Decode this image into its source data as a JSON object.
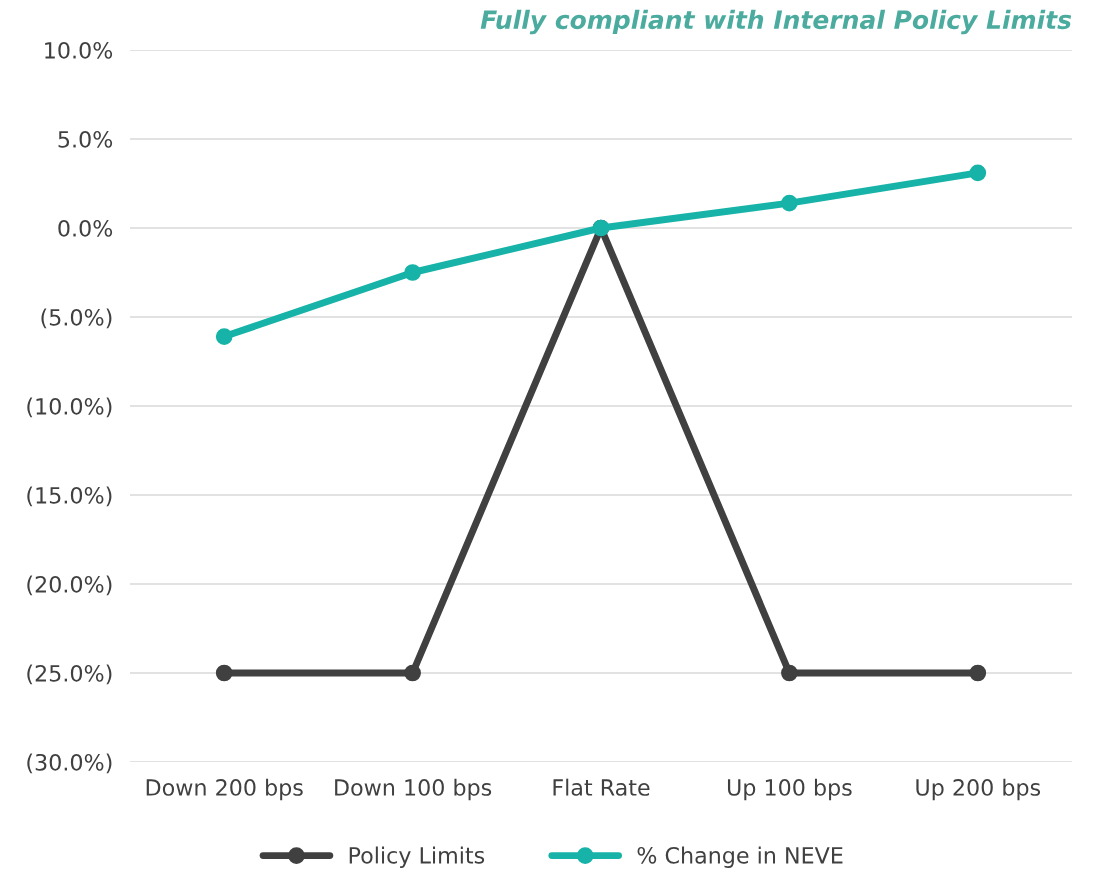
{
  "chart_data": {
    "type": "line",
    "title": "Fully compliant with Internal Policy Limits",
    "categories": [
      "Down 200 bps",
      "Down 100 bps",
      "Flat Rate",
      "Up 100 bps",
      "Up 200 bps"
    ],
    "series": [
      {
        "name": "Policy Limits",
        "color": "#404040",
        "values": [
          -25,
          -25,
          0,
          -25,
          -25
        ]
      },
      {
        "name": "% Change in NEVE",
        "color": "#17b3a8",
        "values": [
          -6.1,
          -2.5,
          0,
          1.4,
          3.1
        ]
      }
    ],
    "ylim": [
      -30,
      10
    ],
    "yticks": [
      {
        "value": -30,
        "label": "(30.0%)"
      },
      {
        "value": -25,
        "label": "(25.0%)"
      },
      {
        "value": -20,
        "label": "(20.0%)"
      },
      {
        "value": -15,
        "label": "(15.0%)"
      },
      {
        "value": -10,
        "label": "(10.0%)"
      },
      {
        "value": -5,
        "label": "(5.0%)"
      },
      {
        "value": 0,
        "label": "0.0%"
      },
      {
        "value": 5,
        "label": "5.0%"
      },
      {
        "value": 10,
        "label": "10.0%"
      }
    ],
    "grid": "y",
    "legend": "bottom",
    "marker": "circle",
    "line_style": "solid"
  }
}
